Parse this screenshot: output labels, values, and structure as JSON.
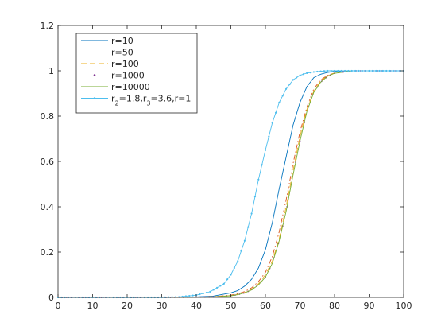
{
  "chart_data": {
    "type": "line",
    "title": "",
    "xlabel": "",
    "ylabel": "",
    "xlim": [
      0,
      100
    ],
    "ylim": [
      0,
      1.2
    ],
    "x_ticks": [
      0,
      10,
      20,
      30,
      40,
      50,
      60,
      70,
      80,
      90,
      100
    ],
    "y_ticks": [
      0,
      0.2,
      0.4,
      0.6,
      0.8,
      1,
      1.2
    ],
    "x_tick_labels": [
      "0",
      "10",
      "20",
      "30",
      "40",
      "50",
      "60",
      "70",
      "80",
      "90",
      "100"
    ],
    "y_tick_labels": [
      "0",
      "0.2",
      "0.4",
      "0.6",
      "0.8",
      "1",
      "1.2"
    ],
    "grid": false,
    "legend_position": "top-left",
    "series": [
      {
        "name": "r=10",
        "color": "#0072BD",
        "style": "solid",
        "x": [
          0,
          30,
          40,
          45,
          50,
          52,
          54,
          56,
          58,
          60,
          62,
          64,
          66,
          68,
          70,
          72,
          74,
          76,
          78,
          80,
          85,
          90,
          100
        ],
        "y": [
          0,
          0,
          0.002,
          0.006,
          0.02,
          0.03,
          0.05,
          0.08,
          0.13,
          0.21,
          0.33,
          0.48,
          0.62,
          0.76,
          0.86,
          0.93,
          0.97,
          0.985,
          0.993,
          0.997,
          1.0,
          1.0,
          1.0
        ]
      },
      {
        "name": "r=50",
        "color": "#D95319",
        "style": "dashdot",
        "x": [
          0,
          30,
          40,
          45,
          50,
          52,
          54,
          56,
          58,
          60,
          62,
          64,
          66,
          68,
          70,
          72,
          74,
          76,
          78,
          80,
          85,
          90,
          100
        ],
        "y": [
          0,
          0,
          0.001,
          0.003,
          0.01,
          0.016,
          0.026,
          0.042,
          0.07,
          0.11,
          0.18,
          0.29,
          0.43,
          0.59,
          0.73,
          0.84,
          0.92,
          0.96,
          0.98,
          0.99,
          1.0,
          1.0,
          1.0
        ]
      },
      {
        "name": "r=100",
        "color": "#EDB120",
        "style": "dashed",
        "x": [
          0,
          30,
          40,
          45,
          50,
          52,
          54,
          56,
          58,
          60,
          62,
          64,
          66,
          68,
          70,
          72,
          74,
          76,
          78,
          80,
          85,
          90,
          100
        ],
        "y": [
          0,
          0,
          0.001,
          0.003,
          0.008,
          0.013,
          0.022,
          0.036,
          0.06,
          0.1,
          0.16,
          0.26,
          0.4,
          0.56,
          0.71,
          0.83,
          0.91,
          0.955,
          0.978,
          0.99,
          1.0,
          1.0,
          1.0
        ]
      },
      {
        "name": "r=1000",
        "color": "#7E2F8E",
        "style": "dots",
        "x": [
          0,
          30,
          40,
          45,
          50,
          52,
          54,
          56,
          58,
          60,
          62,
          64,
          66,
          68,
          70,
          72,
          74,
          76,
          78,
          80,
          85,
          90,
          100
        ],
        "y": [
          0,
          0,
          0.001,
          0.002,
          0.007,
          0.012,
          0.02,
          0.033,
          0.055,
          0.09,
          0.15,
          0.25,
          0.38,
          0.54,
          0.69,
          0.82,
          0.905,
          0.95,
          0.976,
          0.989,
          1.0,
          1.0,
          1.0
        ]
      },
      {
        "name": "r=10000",
        "color": "#77AC30",
        "style": "solid",
        "x": [
          0,
          30,
          40,
          45,
          50,
          52,
          54,
          56,
          58,
          60,
          62,
          64,
          66,
          68,
          70,
          72,
          74,
          76,
          78,
          80,
          85,
          90,
          100
        ],
        "y": [
          0,
          0,
          0.001,
          0.002,
          0.007,
          0.012,
          0.02,
          0.033,
          0.055,
          0.09,
          0.15,
          0.25,
          0.38,
          0.54,
          0.69,
          0.82,
          0.905,
          0.95,
          0.976,
          0.989,
          1.0,
          1.0,
          1.0
        ]
      },
      {
        "name_parts": [
          "r",
          "2",
          "=1.8,r",
          "3",
          "=3.6,r=1"
        ],
        "color": "#4DBEEE",
        "style": "solid-markers",
        "x": [
          0,
          30,
          35,
          40,
          44,
          48,
          50,
          52,
          54,
          56,
          58,
          60,
          62,
          64,
          66,
          68,
          70,
          72,
          74,
          76,
          78,
          80,
          85,
          90,
          100
        ],
        "y": [
          0,
          0,
          0.002,
          0.01,
          0.025,
          0.06,
          0.1,
          0.16,
          0.25,
          0.37,
          0.52,
          0.65,
          0.77,
          0.86,
          0.92,
          0.96,
          0.98,
          0.99,
          0.995,
          0.998,
          1.0,
          1.0,
          1.0,
          1.0,
          1.0
        ]
      }
    ]
  }
}
